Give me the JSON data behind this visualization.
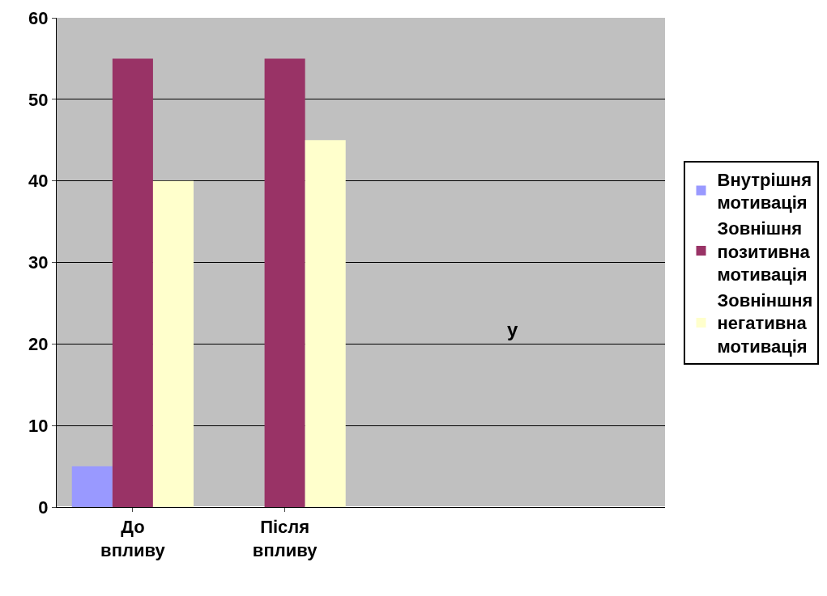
{
  "chart_data": {
    "type": "bar",
    "categories": [
      "До впливу",
      "Після впливу",
      null,
      null
    ],
    "series": [
      {
        "name": "Внутрішня мотивація",
        "color": "#9999ff",
        "values": [
          5,
          0,
          null,
          null
        ]
      },
      {
        "name": "Зовнішня позитивна мотивація",
        "color": "#993366",
        "values": [
          55,
          55,
          null,
          null
        ]
      },
      {
        "name": "Зовніншня негативна мотивація",
        "color": "#ffffcc",
        "values": [
          40,
          45,
          null,
          null
        ]
      }
    ],
    "ylim": [
      0,
      60
    ],
    "yticks": [
      0,
      10,
      20,
      30,
      40,
      50,
      60
    ],
    "grid": "y",
    "legend": "right",
    "annotations": [
      "у"
    ]
  }
}
